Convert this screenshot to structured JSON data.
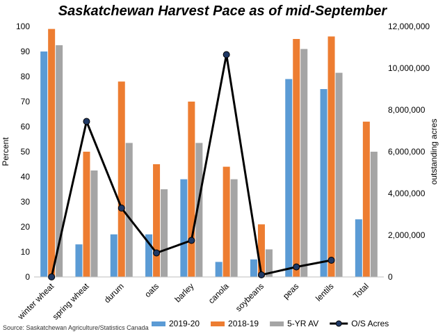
{
  "chart_data": {
    "type": "bar",
    "title": "Saskatchewan Harvest Pace as of mid-September",
    "ylabel": "Percent",
    "y2label": "outstanding acres",
    "ylim": [
      0,
      100
    ],
    "y2lim": [
      0,
      12000000
    ],
    "yticks": [
      "0",
      "10",
      "20",
      "30",
      "40",
      "50",
      "60",
      "70",
      "80",
      "90",
      "100"
    ],
    "y2ticks": [
      "0",
      "2,000,000",
      "4,000,000",
      "6,000,000",
      "8,000,000",
      "10,000,000",
      "12,000,000"
    ],
    "categories": [
      "winter wheat",
      "spring wheat",
      "durum",
      "oats",
      "barley",
      "canola",
      "soybeans",
      "peas",
      "lentils",
      "Total"
    ],
    "series": [
      {
        "name": "2019-20",
        "color": "#5B9BD5",
        "values": [
          90,
          13,
          17,
          17,
          39,
          6,
          7,
          79,
          75,
          23
        ]
      },
      {
        "name": "2018-19",
        "color": "#ED7D31",
        "values": [
          99,
          50,
          78,
          45,
          70,
          44,
          21,
          95,
          96,
          62
        ]
      },
      {
        "name": "5-YR AV",
        "color": "#A5A5A5",
        "values": [
          92.5,
          42.5,
          53.5,
          35,
          53.5,
          39,
          11,
          91,
          81.5,
          50
        ]
      }
    ],
    "line_series": {
      "name": "O/S Acres",
      "axis": "secondary",
      "color": "#000000",
      "marker_color": "#1F3864",
      "values": [
        0,
        7450000,
        3300000,
        1150000,
        1750000,
        10650000,
        100000,
        480000,
        800000
      ]
    },
    "legend_position": "bottom",
    "grid": false,
    "source": "Source: Saskatchewan Agriculture/Statistics Canada"
  }
}
